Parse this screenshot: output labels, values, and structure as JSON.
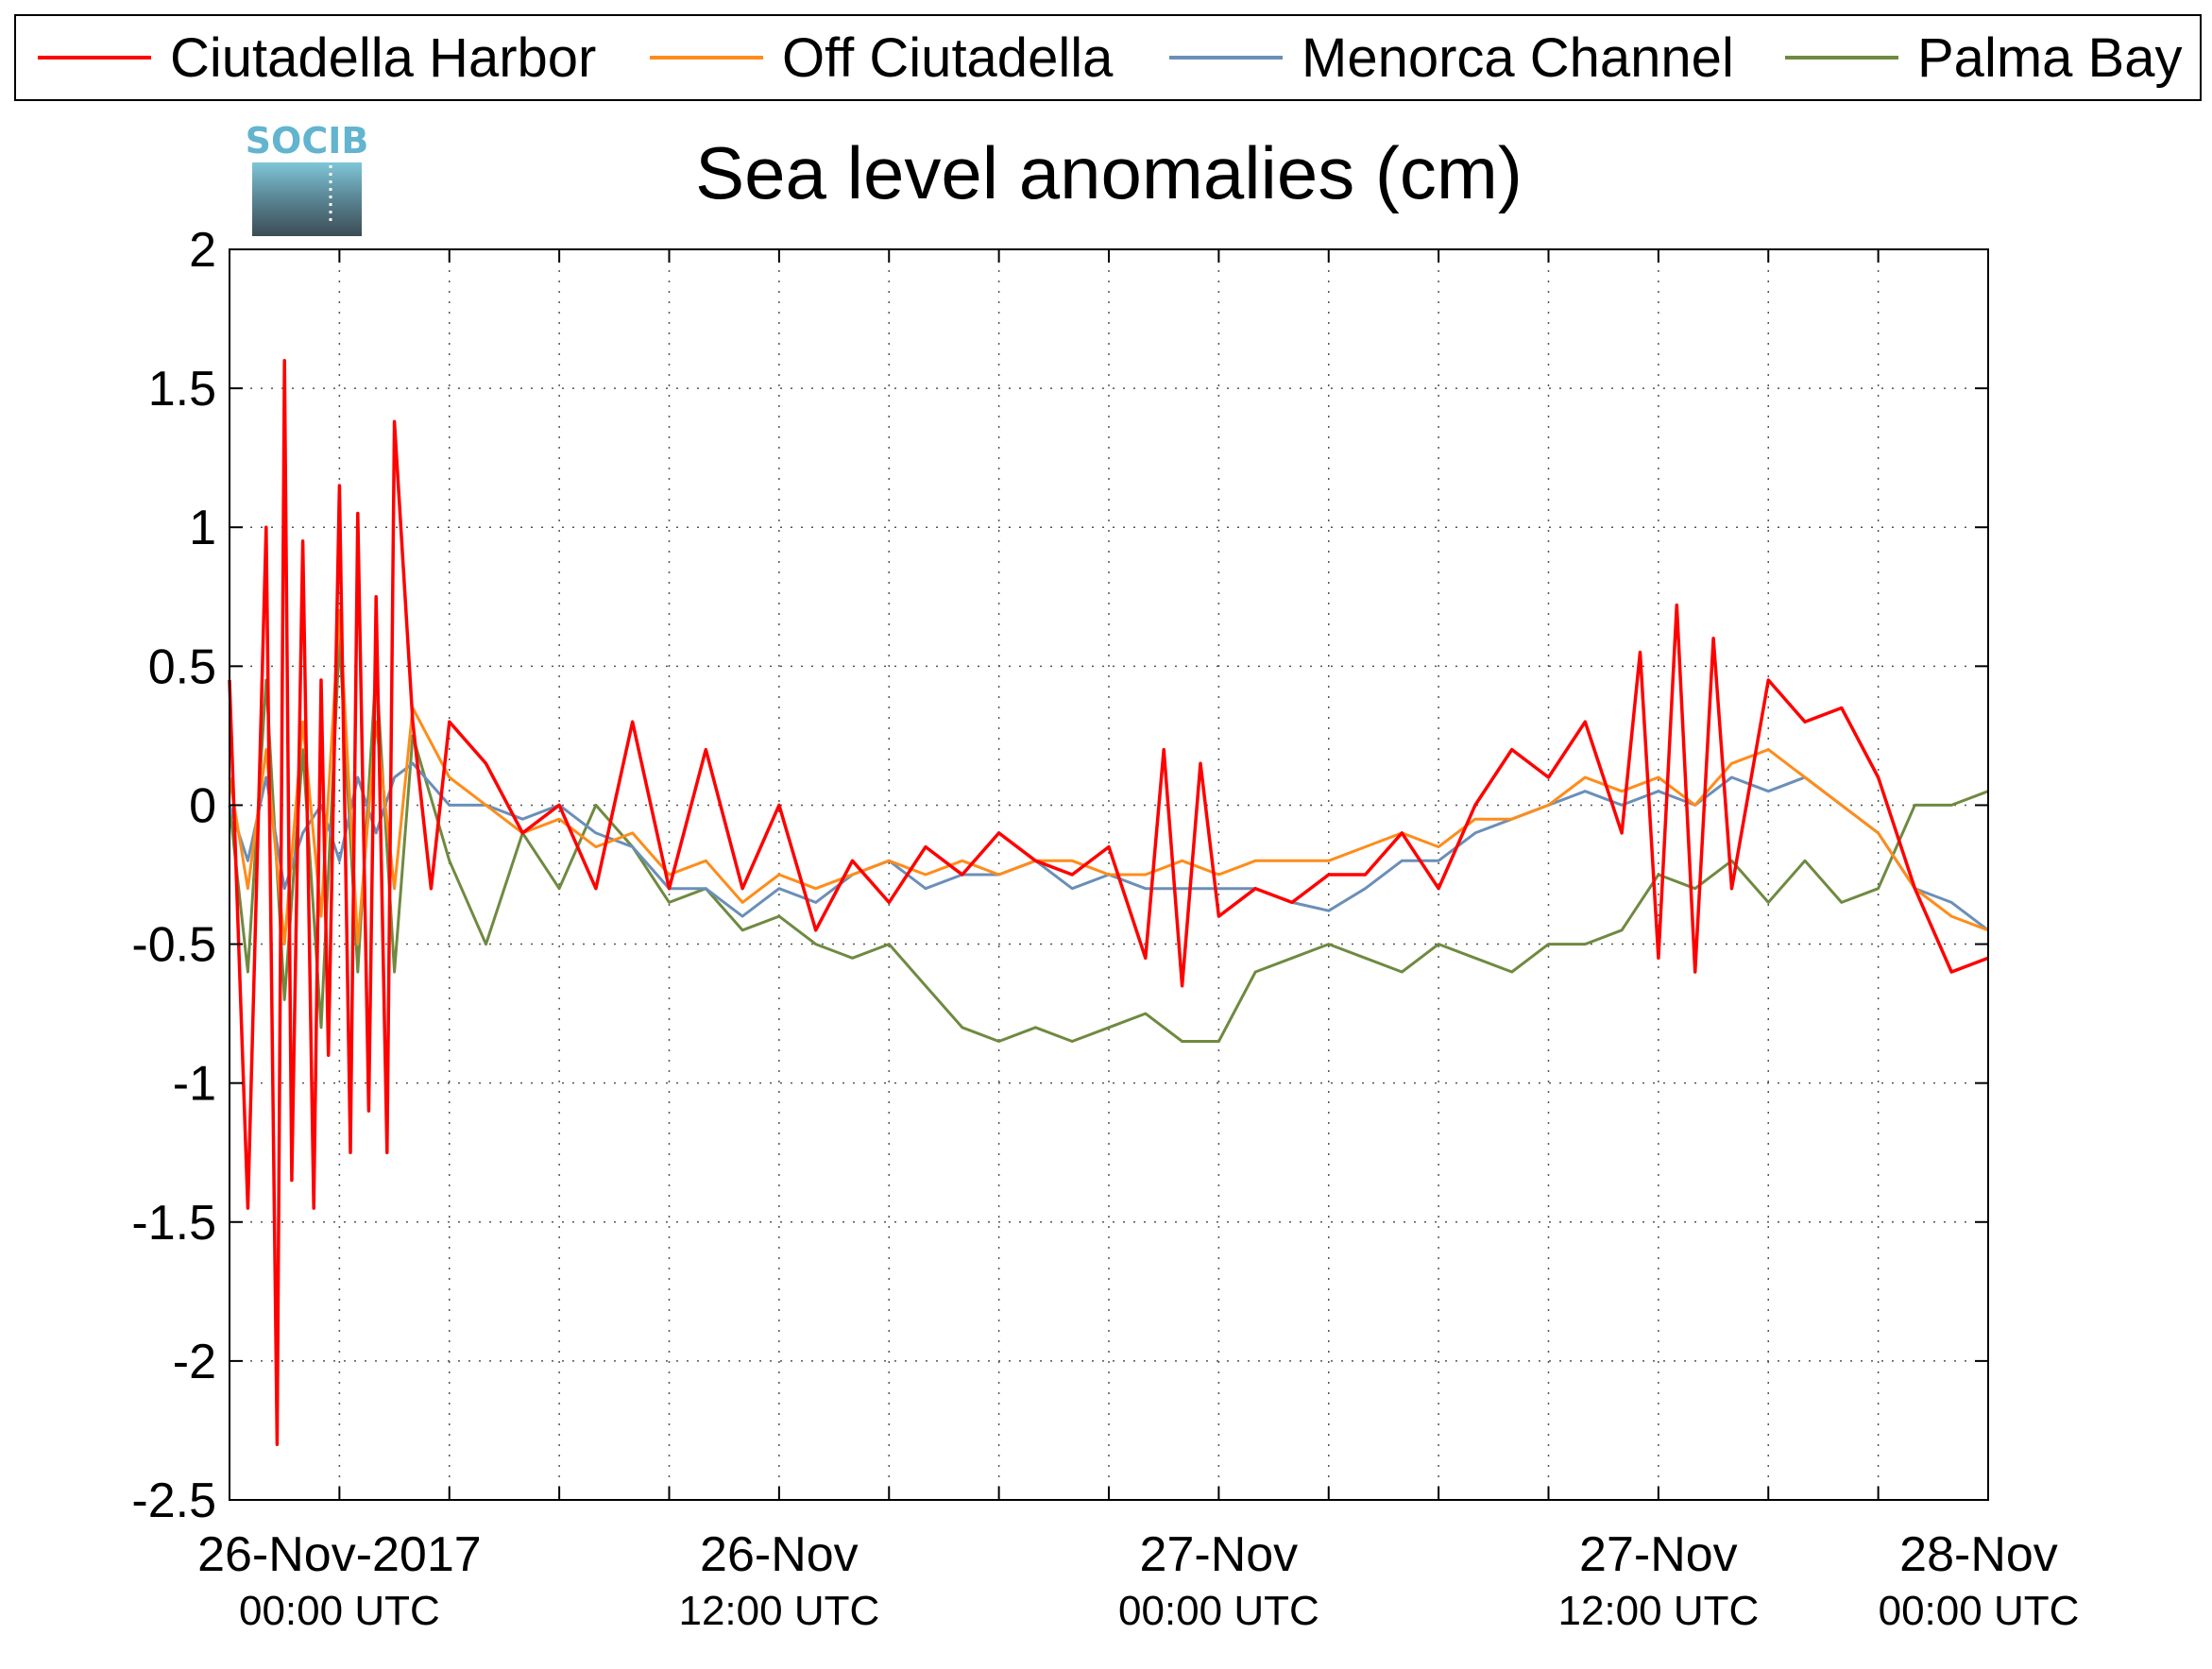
{
  "chart_data": {
    "type": "line",
    "title": "Sea level anomalies (cm)",
    "xlabel": "",
    "ylabel": "",
    "ylim": [
      -2.5,
      2
    ],
    "yticks": [
      "2",
      "1.5",
      "1",
      "0.5",
      "0",
      "-0.5",
      "-1",
      "-1.5",
      "-2",
      "-2.5"
    ],
    "ytick_values": [
      2,
      1.5,
      1,
      0.5,
      0,
      -0.5,
      -1,
      -1.5,
      -2,
      -2.5
    ],
    "xlim_hours": [
      -3,
      45
    ],
    "xticks": [
      {
        "hours": 0,
        "label": "26-Nov-2017",
        "sub": "00:00 UTC"
      },
      {
        "hours": 12,
        "label": "26-Nov",
        "sub": "12:00 UTC"
      },
      {
        "hours": 24,
        "label": "27-Nov",
        "sub": "00:00 UTC"
      },
      {
        "hours": 36,
        "label": "27-Nov",
        "sub": "12:00 UTC"
      },
      {
        "hours": 48,
        "label": "28-Nov",
        "sub": "00:00 UTC"
      }
    ],
    "grid": true,
    "legend_position": "top",
    "logo": "SOCIB",
    "series": [
      {
        "name": "Ciutadella Harbor",
        "color": "#ff0000",
        "x": [
          -3,
          -2.5,
          -2,
          -1.7,
          -1.5,
          -1.3,
          -1,
          -0.7,
          -0.5,
          -0.3,
          0,
          0.3,
          0.5,
          0.8,
          1,
          1.3,
          1.5,
          2,
          2.5,
          3,
          4,
          5,
          6,
          7,
          8,
          9,
          10,
          11,
          12,
          13,
          14,
          15,
          16,
          17,
          18,
          19,
          20,
          21,
          22,
          22.5,
          23,
          23.5,
          24,
          25,
          26,
          27,
          28,
          29,
          30,
          31,
          32,
          33,
          34,
          35,
          35.5,
          36,
          36.5,
          37,
          37.5,
          38,
          39,
          40,
          41,
          42,
          43,
          44,
          45
        ],
        "y": [
          0.45,
          -1.45,
          1.0,
          -2.3,
          1.6,
          -1.35,
          0.95,
          -1.45,
          0.45,
          -0.9,
          1.15,
          -1.25,
          1.05,
          -1.1,
          0.75,
          -1.25,
          1.38,
          0.3,
          -0.3,
          0.3,
          0.15,
          -0.1,
          0.0,
          -0.3,
          0.3,
          -0.3,
          0.2,
          -0.3,
          0.0,
          -0.45,
          -0.2,
          -0.35,
          -0.15,
          -0.25,
          -0.1,
          -0.2,
          -0.25,
          -0.15,
          -0.55,
          0.2,
          -0.65,
          0.15,
          -0.4,
          -0.3,
          -0.35,
          -0.25,
          -0.25,
          -0.1,
          -0.3,
          0.0,
          0.2,
          0.1,
          0.3,
          -0.1,
          0.55,
          -0.55,
          0.72,
          -0.6,
          0.6,
          -0.3,
          0.45,
          0.3,
          0.35,
          0.1,
          -0.3,
          -0.6,
          -0.55
        ]
      },
      {
        "name": "Off Ciutadella",
        "color": "#ff8c1a",
        "x": [
          -3,
          -2.5,
          -2,
          -1.5,
          -1,
          -0.5,
          0,
          0.5,
          1,
          1.5,
          2,
          3,
          4,
          5,
          6,
          7,
          8,
          9,
          10,
          11,
          12,
          13,
          14,
          15,
          16,
          17,
          18,
          19,
          20,
          21,
          22,
          23,
          24,
          25,
          26,
          27,
          28,
          29,
          30,
          31,
          32,
          33,
          34,
          35,
          36,
          37,
          38,
          39,
          40,
          41,
          42,
          43,
          44,
          45
        ],
        "y": [
          0.1,
          -0.3,
          0.2,
          -0.5,
          0.3,
          -0.4,
          0.7,
          -0.5,
          0.3,
          -0.3,
          0.35,
          0.1,
          0.0,
          -0.1,
          -0.05,
          -0.15,
          -0.1,
          -0.25,
          -0.2,
          -0.35,
          -0.25,
          -0.3,
          -0.25,
          -0.2,
          -0.25,
          -0.2,
          -0.25,
          -0.2,
          -0.2,
          -0.25,
          -0.25,
          -0.2,
          -0.25,
          -0.2,
          -0.2,
          -0.2,
          -0.15,
          -0.1,
          -0.15,
          -0.05,
          -0.05,
          0.0,
          0.1,
          0.05,
          0.1,
          0.0,
          0.15,
          0.2,
          0.1,
          0.0,
          -0.1,
          -0.3,
          -0.4,
          -0.45
        ]
      },
      {
        "name": "Menorca Channel",
        "color": "#6a8fb8",
        "x": [
          -3,
          -2.5,
          -2,
          -1.5,
          -1,
          -0.5,
          0,
          0.5,
          1,
          1.5,
          2,
          3,
          4,
          5,
          6,
          7,
          8,
          9,
          10,
          11,
          12,
          13,
          14,
          15,
          16,
          17,
          18,
          19,
          20,
          21,
          22,
          23,
          24,
          25,
          26,
          27,
          28,
          29,
          30,
          31,
          32,
          33,
          34,
          35,
          36,
          37,
          38,
          39,
          40,
          41,
          42,
          43,
          44,
          45
        ],
        "y": [
          0.0,
          -0.2,
          0.1,
          -0.3,
          -0.1,
          0.0,
          -0.2,
          0.1,
          -0.1,
          0.1,
          0.15,
          0.0,
          0.0,
          -0.05,
          0.0,
          -0.1,
          -0.15,
          -0.3,
          -0.3,
          -0.4,
          -0.3,
          -0.35,
          -0.25,
          -0.2,
          -0.3,
          -0.25,
          -0.25,
          -0.2,
          -0.3,
          -0.25,
          -0.3,
          -0.3,
          -0.3,
          -0.3,
          -0.35,
          -0.38,
          -0.3,
          -0.2,
          -0.2,
          -0.1,
          -0.05,
          0.0,
          0.05,
          0.0,
          0.05,
          0.0,
          0.1,
          0.05,
          0.1,
          0.0,
          -0.1,
          -0.3,
          -0.35,
          -0.45
        ]
      },
      {
        "name": "Palma Bay",
        "color": "#6f8a40",
        "x": [
          -3,
          -2.5,
          -2,
          -1.5,
          -1,
          -0.5,
          0,
          0.5,
          1,
          1.5,
          2,
          3,
          4,
          5,
          6,
          7,
          8,
          9,
          10,
          11,
          12,
          13,
          14,
          15,
          16,
          17,
          18,
          19,
          20,
          21,
          22,
          23,
          24,
          25,
          26,
          27,
          28,
          29,
          30,
          31,
          32,
          33,
          34,
          35,
          36,
          37,
          38,
          39,
          40,
          41,
          42,
          43,
          44,
          45
        ],
        "y": [
          0.0,
          -0.6,
          0.45,
          -0.7,
          0.2,
          -0.8,
          0.6,
          -0.6,
          0.5,
          -0.6,
          0.25,
          -0.2,
          -0.5,
          -0.1,
          -0.3,
          0.0,
          -0.15,
          -0.35,
          -0.3,
          -0.45,
          -0.4,
          -0.5,
          -0.55,
          -0.5,
          -0.65,
          -0.8,
          -0.85,
          -0.8,
          -0.85,
          -0.8,
          -0.75,
          -0.85,
          -0.85,
          -0.6,
          -0.55,
          -0.5,
          -0.55,
          -0.6,
          -0.5,
          -0.55,
          -0.6,
          -0.5,
          -0.5,
          -0.45,
          -0.25,
          -0.3,
          -0.2,
          -0.35,
          -0.2,
          -0.35,
          -0.3,
          0.0,
          0.0,
          0.05
        ]
      }
    ]
  }
}
